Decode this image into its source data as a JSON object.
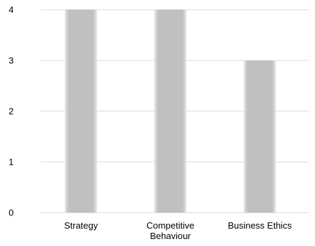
{
  "chart_data": {
    "type": "bar",
    "categories": [
      [
        "Strategy"
      ],
      [
        "Competitive",
        "Behaviour"
      ],
      [
        "Business Ethics"
      ]
    ],
    "values": [
      4,
      4,
      3
    ],
    "ylim": [
      0,
      4
    ],
    "yticks": [
      0,
      1,
      2,
      3,
      4
    ],
    "grid": true,
    "legend": "none",
    "colors": {
      "bar": "#c0c0c0",
      "bar_edge": "#e6e6e6",
      "grid": "#d9d9d9",
      "axis": "#d9d9d9"
    }
  }
}
